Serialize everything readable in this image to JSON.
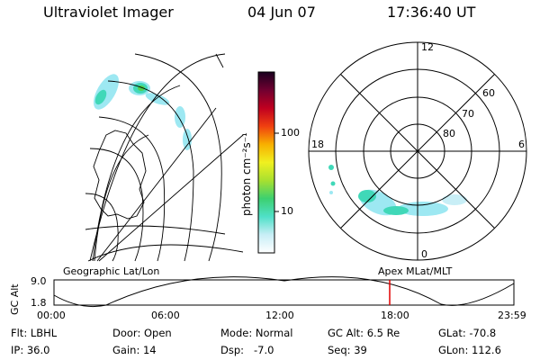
{
  "header": {
    "instrument": "Ultraviolet Imager",
    "date": "04 Jun 07",
    "time": "17:36:40 UT"
  },
  "colorbar": {
    "label": "photon cm⁻²s⁻¹",
    "ticks": [
      "100",
      "10"
    ]
  },
  "polar_plot": {
    "mlt_labels": {
      "top": "12",
      "left": "18",
      "right": "6",
      "bottom": "0"
    },
    "lat_labels": [
      "60",
      "70",
      "80"
    ]
  },
  "panel_labels": {
    "left": "Geographic Lat/Lon",
    "right": "Apex MLat/MLT"
  },
  "gc_alt_plot": {
    "ylabel": "GC Alt",
    "y_ticks": [
      "9.0",
      "1.8"
    ],
    "x_ticks": [
      "00:00",
      "06:00",
      "12:00",
      "18:00",
      "23:59"
    ],
    "marker_color": "#e00000"
  },
  "info": {
    "filter": "Flt: LBHL",
    "ip": "IP: 36.0",
    "door": "Door: Open",
    "gain": "Gain: 14",
    "mode": "Mode: Normal",
    "dsp": "Dsp:   -7.0",
    "gc_alt": "GC Alt: 6.5 Re",
    "seq": "Seq: 39",
    "glat": "GLat: -70.8",
    "glon": "GLon: 112.6"
  }
}
